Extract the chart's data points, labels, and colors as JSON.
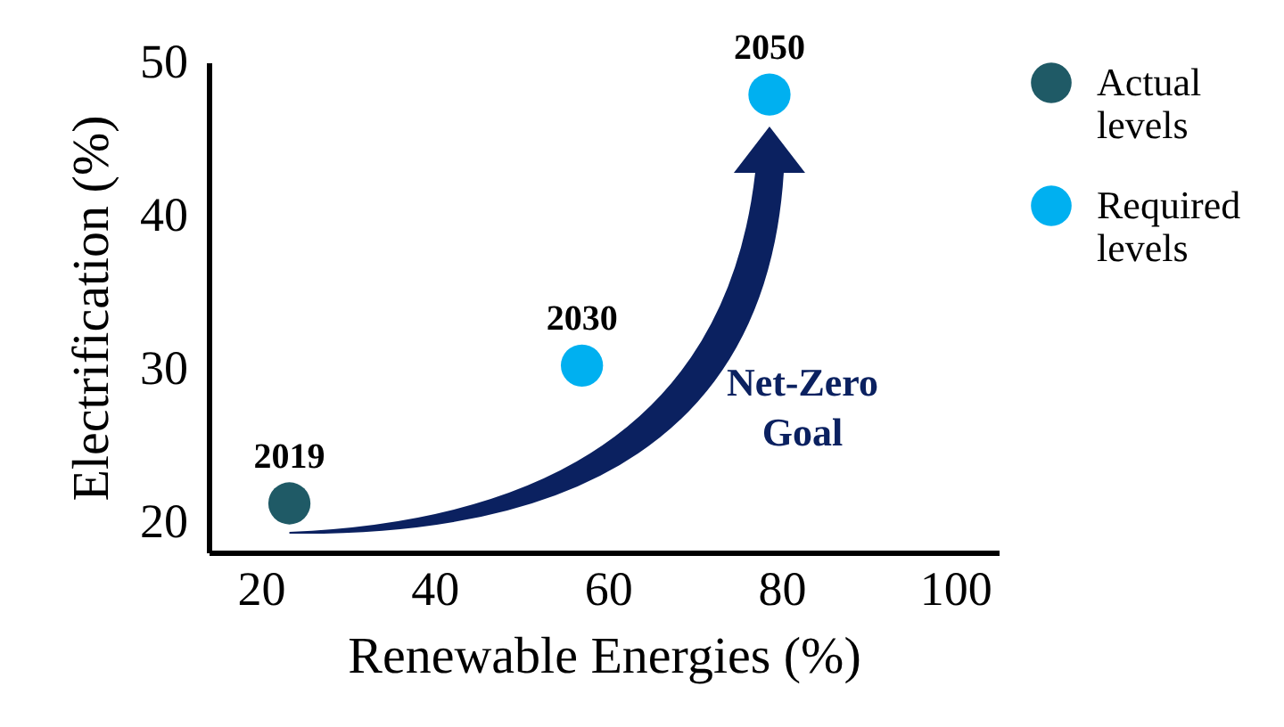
{
  "chart_data": {
    "type": "scatter",
    "xlabel": "Renewable Energies (%)",
    "ylabel": "Electrification (%)",
    "series": [
      {
        "name": "Actual levels",
        "color": "#1f5a66",
        "x": [
          23.3
        ],
        "values": [
          21.2
        ]
      },
      {
        "name": "Required levels",
        "color": "#00b0f0",
        "x": [
          57,
          78.6
        ],
        "values": [
          30.2,
          47.9
        ]
      }
    ],
    "annotations": [
      {
        "text": "2019",
        "x": 23.3,
        "y": 21.2
      },
      {
        "text": "2030",
        "x": 57,
        "y": 30.2
      },
      {
        "text": "2050",
        "x": 78.6,
        "y": 47.9
      },
      "Net-Zero Goal"
    ],
    "xlim": [
      14,
      105
    ],
    "xticks": [
      20,
      40,
      60,
      80,
      100
    ],
    "ylim": [
      18,
      50
    ],
    "yticks": [
      20,
      30,
      40,
      50
    ],
    "grid": false,
    "legend": "right",
    "marker": "circle"
  }
}
